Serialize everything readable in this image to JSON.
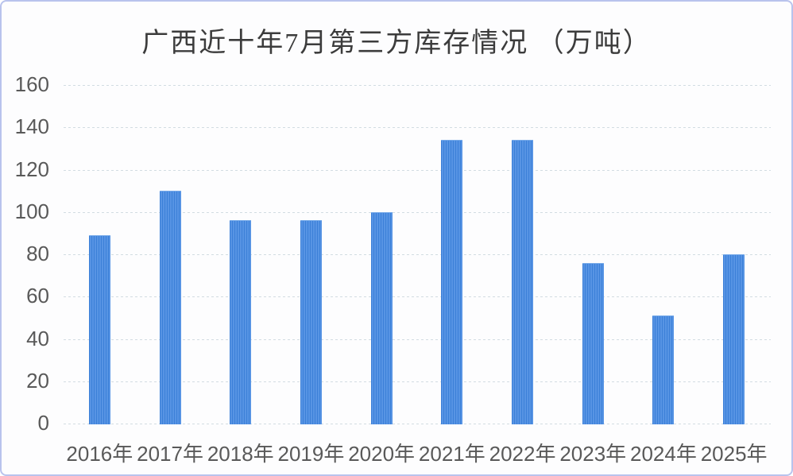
{
  "title": "广西近十年7月第三方库存情况 （万吨）",
  "colors": {
    "bar_stripe_dark": "#3c80d8",
    "bar_stripe_light": "#5794e4",
    "gridline": "#d2dce2",
    "axis_text": "#595959",
    "title_text": "#3c3c3c",
    "frame_border": "#b9c3ed",
    "background": "#fdfdfe"
  },
  "chart_data": {
    "type": "bar",
    "title": "广西近十年7月第三方库存情况 （万吨）",
    "categories": [
      "2016年",
      "2017年",
      "2018年",
      "2019年",
      "2020年",
      "2021年",
      "2022年",
      "2023年",
      "2024年",
      "2025年"
    ],
    "values": [
      89,
      110,
      96,
      96,
      100,
      134,
      134,
      76,
      51,
      80
    ],
    "xlabel": "",
    "ylabel": "",
    "ylim": [
      0,
      160
    ],
    "yticks": [
      0,
      20,
      40,
      60,
      80,
      100,
      120,
      140,
      160
    ],
    "grid": "horizontal-dashed",
    "legend": "none",
    "unit": "万吨"
  }
}
